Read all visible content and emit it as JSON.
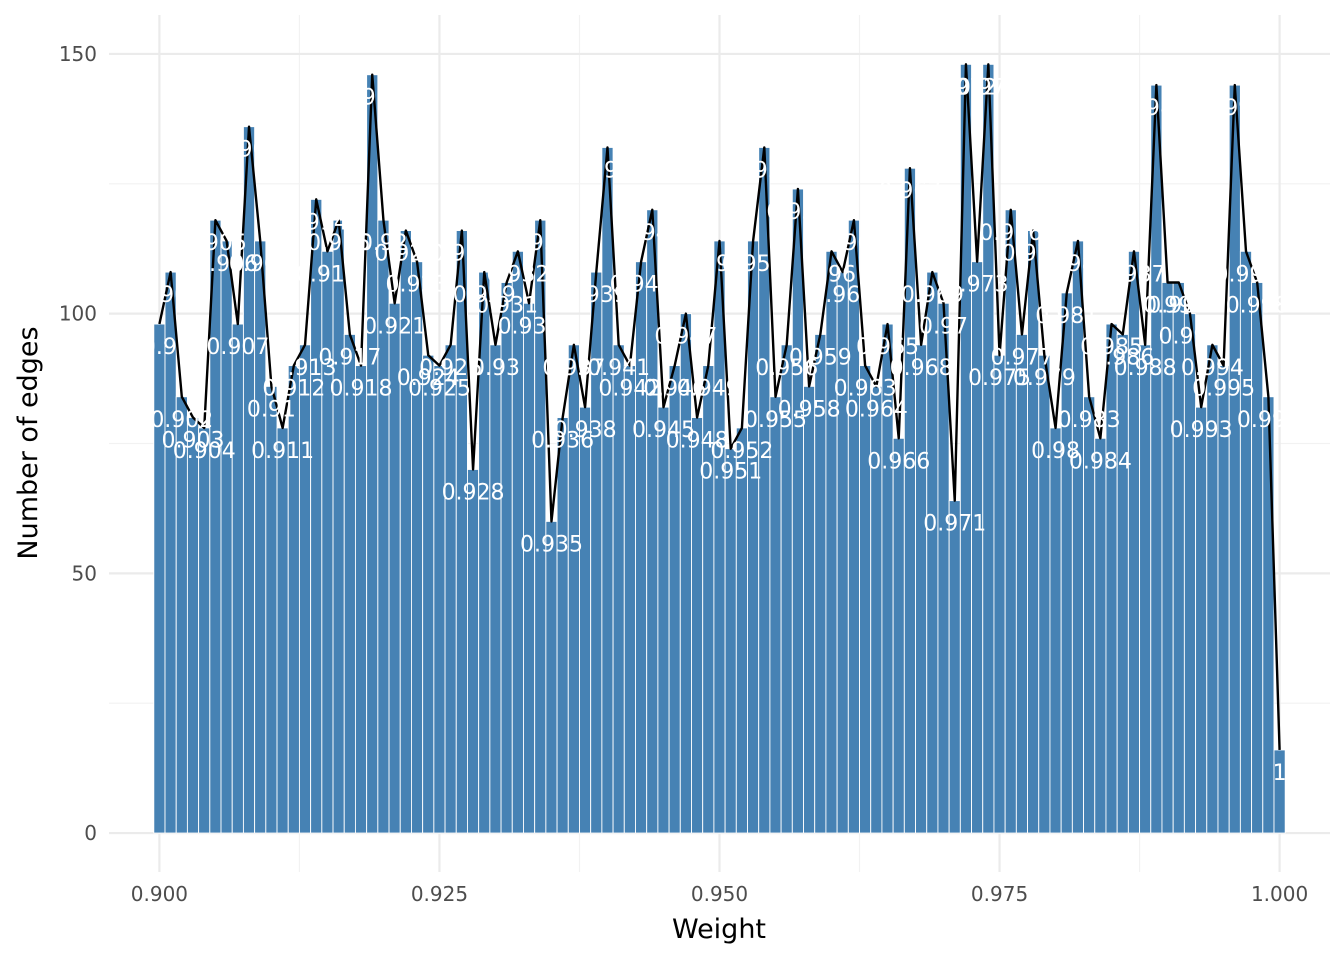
{
  "chart_data": {
    "type": "bar",
    "title": "",
    "xlabel": "Weight",
    "ylabel": "Number of edges",
    "xlim": [
      0.8955,
      1.0045
    ],
    "ylim": [
      -7.5,
      157.5
    ],
    "x_ticks": [
      0.9,
      0.925,
      0.95,
      0.975,
      1.0
    ],
    "x_tick_labels": [
      "0.900",
      "0.925",
      "0.950",
      "0.975",
      "1.000"
    ],
    "y_ticks": [
      0,
      50,
      100,
      150
    ],
    "y_tick_labels": [
      "0",
      "50",
      "100",
      "150"
    ],
    "grid": true,
    "overlay_line": true,
    "bar_color": "#4682b4",
    "line_color": "#000000",
    "label_color": "#ffffff",
    "categories": [
      "0.9",
      "0.901",
      "0.902",
      "0.903",
      "0.904",
      "0.905",
      "0.906",
      "0.907",
      "0.908",
      "0.909",
      "0.91",
      "0.911",
      "0.912",
      "0.913",
      "0.914",
      "0.915",
      "0.916",
      "0.917",
      "0.918",
      "0.919",
      "0.92",
      "0.921",
      "0.922",
      "0.923",
      "0.924",
      "0.925",
      "0.926",
      "0.927",
      "0.928",
      "0.929",
      "0.93",
      "0.931",
      "0.932",
      "0.933",
      "0.934",
      "0.935",
      "0.936",
      "0.937",
      "0.938",
      "0.939",
      "0.94",
      "0.941",
      "0.942",
      "0.943",
      "0.944",
      "0.945",
      "0.946",
      "0.947",
      "0.948",
      "0.949",
      "0.95",
      "0.951",
      "0.952",
      "0.953",
      "0.954",
      "0.955",
      "0.956",
      "0.957",
      "0.958",
      "0.959",
      "0.96",
      "0.961",
      "0.962",
      "0.963",
      "0.964",
      "0.965",
      "0.966",
      "0.967",
      "0.968",
      "0.969",
      "0.97",
      "0.971",
      "0.972",
      "0.973",
      "0.974",
      "0.975",
      "0.976",
      "0.977",
      "0.978",
      "0.979",
      "0.98",
      "0.981",
      "0.982",
      "0.983",
      "0.984",
      "0.985",
      "0.986",
      "0.987",
      "0.988",
      "0.989",
      "0.99",
      "0.991",
      "0.992",
      "0.993",
      "0.994",
      "0.995",
      "0.996",
      "0.997",
      "0.998",
      "0.999",
      "1"
    ],
    "x": [
      0.9,
      0.901,
      0.902,
      0.903,
      0.904,
      0.905,
      0.906,
      0.907,
      0.908,
      0.909,
      0.91,
      0.911,
      0.912,
      0.913,
      0.914,
      0.915,
      0.916,
      0.917,
      0.918,
      0.919,
      0.92,
      0.921,
      0.922,
      0.923,
      0.924,
      0.925,
      0.926,
      0.927,
      0.928,
      0.929,
      0.93,
      0.931,
      0.932,
      0.933,
      0.934,
      0.935,
      0.936,
      0.937,
      0.938,
      0.939,
      0.94,
      0.941,
      0.942,
      0.943,
      0.944,
      0.945,
      0.946,
      0.947,
      0.948,
      0.949,
      0.95,
      0.951,
      0.952,
      0.953,
      0.954,
      0.955,
      0.956,
      0.957,
      0.958,
      0.959,
      0.96,
      0.961,
      0.962,
      0.963,
      0.964,
      0.965,
      0.966,
      0.967,
      0.968,
      0.969,
      0.97,
      0.971,
      0.972,
      0.973,
      0.974,
      0.975,
      0.976,
      0.977,
      0.978,
      0.979,
      0.98,
      0.981,
      0.982,
      0.983,
      0.984,
      0.985,
      0.986,
      0.987,
      0.988,
      0.989,
      0.99,
      0.991,
      0.992,
      0.993,
      0.994,
      0.995,
      0.996,
      0.997,
      0.998,
      0.999,
      1.0
    ],
    "values": [
      98,
      108,
      84,
      80,
      78,
      118,
      114,
      98,
      136,
      114,
      86,
      78,
      90,
      94,
      122,
      112,
      118,
      96,
      90,
      146,
      118,
      102,
      116,
      110,
      92,
      90,
      94,
      116,
      70,
      108,
      94,
      106,
      112,
      102,
      118,
      60,
      80,
      94,
      82,
      108,
      132,
      94,
      90,
      110,
      120,
      82,
      90,
      100,
      80,
      90,
      114,
      74,
      78,
      114,
      132,
      84,
      94,
      124,
      86,
      96,
      112,
      108,
      118,
      90,
      86,
      98,
      76,
      128,
      94,
      108,
      102,
      64,
      148,
      110,
      148,
      92,
      120,
      96,
      116,
      92,
      78,
      104,
      114,
      84,
      76,
      98,
      96,
      112,
      94,
      144,
      106,
      106,
      100,
      82,
      94,
      90,
      144,
      112,
      106,
      84,
      16
    ]
  }
}
